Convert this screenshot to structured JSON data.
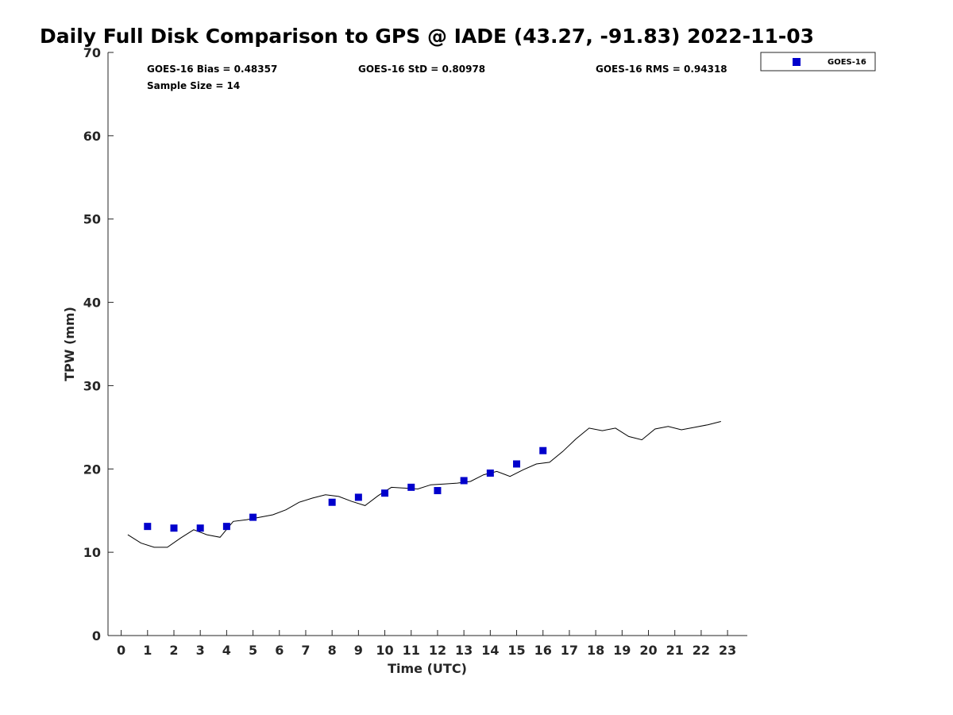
{
  "chart_data": {
    "type": "scatter",
    "title": "Daily Full Disk Comparison to GPS @ IADE (43.27, -91.83) 2022-11-03",
    "xlabel": "Time (UTC)",
    "ylabel": "TPW (mm)",
    "xlim": [
      -0.5,
      23.75
    ],
    "ylim": [
      0,
      70
    ],
    "x_ticks": [
      "0",
      "1",
      "2",
      "3",
      "4",
      "5",
      "6",
      "7",
      "8",
      "9",
      "10",
      "11",
      "12",
      "13",
      "14",
      "15",
      "16",
      "17",
      "18",
      "19",
      "20",
      "21",
      "22",
      "23"
    ],
    "y_ticks": [
      "0",
      "10",
      "20",
      "30",
      "40",
      "50",
      "60",
      "70"
    ],
    "grid": false,
    "legend": {
      "position": "top-right",
      "entries": [
        {
          "label": "GOES-16",
          "color": "#0000cc",
          "marker": "square"
        }
      ]
    },
    "stats": {
      "bias": "GOES-16 Bias = 0.48357",
      "std": "GOES-16 StD = 0.80978",
      "rms": "GOES-16 RMS = 0.94318",
      "sample_size": "Sample Size = 14"
    },
    "series": [
      {
        "name": "GOES-16",
        "style": "markers",
        "color": "#0000cc",
        "x": [
          1,
          2,
          3,
          4,
          5,
          8,
          9,
          10,
          11,
          12,
          13,
          14,
          15,
          16
        ],
        "y": [
          13.1,
          12.9,
          12.9,
          13.1,
          14.2,
          16.0,
          16.6,
          17.1,
          17.8,
          17.4,
          18.6,
          19.5,
          20.6,
          22.2
        ]
      },
      {
        "style": "line",
        "color": "#000000",
        "x": [
          0.25,
          0.75,
          1.25,
          1.75,
          2.25,
          2.75,
          3.25,
          3.75,
          4.25,
          4.75,
          5.25,
          5.75,
          6.25,
          6.75,
          7.25,
          7.75,
          8.25,
          8.75,
          9.25,
          9.75,
          10.25,
          10.75,
          11.25,
          11.75,
          12.25,
          12.75,
          13.25,
          13.75,
          14.25,
          14.75,
          15.25,
          15.75,
          16.25,
          16.75,
          17.25,
          17.75,
          18.25,
          18.75,
          19.25,
          19.75,
          20.25,
          20.75,
          21.25,
          21.75,
          22.25,
          22.75
        ],
        "y": [
          12.1,
          11.1,
          10.6,
          10.6,
          11.7,
          12.7,
          12.1,
          11.8,
          13.7,
          13.9,
          14.2,
          14.5,
          15.1,
          16.0,
          16.5,
          16.9,
          16.7,
          16.1,
          15.6,
          16.8,
          17.8,
          17.7,
          17.6,
          18.1,
          18.2,
          18.3,
          18.5,
          19.3,
          19.7,
          19.1,
          19.9,
          20.6,
          20.8,
          22.1,
          23.6,
          24.9,
          24.6,
          24.9,
          23.9,
          23.5,
          24.8,
          25.1,
          24.7,
          25.0,
          25.3,
          25.7
        ]
      }
    ]
  }
}
